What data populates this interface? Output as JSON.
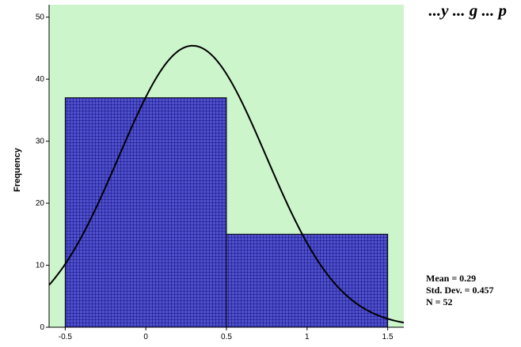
{
  "chart_data": {
    "type": "bar",
    "title": "...y ... g ... p",
    "xlabel": "",
    "ylabel": "Frequency",
    "bins": [
      {
        "x0": -0.5,
        "x1": 0.5,
        "count": 37
      },
      {
        "x0": 0.5,
        "x1": 1.5,
        "count": 15
      }
    ],
    "normal_curve": {
      "mean": 0.29,
      "std": 0.457,
      "n": 52,
      "bin_width": 1
    },
    "xlim": [
      -0.6,
      1.6
    ],
    "ylim": [
      0,
      52
    ],
    "xticks": [
      -0.5,
      0,
      0.5,
      1,
      1.5
    ],
    "xtick_labels": [
      "-0.5",
      "0",
      "0.5",
      "1",
      "1.5"
    ],
    "yticks": [
      0,
      10,
      20,
      30,
      40,
      50
    ],
    "ytick_labels": [
      "0",
      "10",
      "20",
      "30",
      "40",
      "50"
    ],
    "grid": false,
    "colors": {
      "plot_background": "#ccf5cc",
      "bar_fill": "#5050cc",
      "bar_hatch": "#00006a",
      "curve": "#000000"
    },
    "stats": {
      "mean": "Mean = 0.29",
      "std_dev": "Std. Dev. = 0.457",
      "n": "N = 52"
    }
  }
}
